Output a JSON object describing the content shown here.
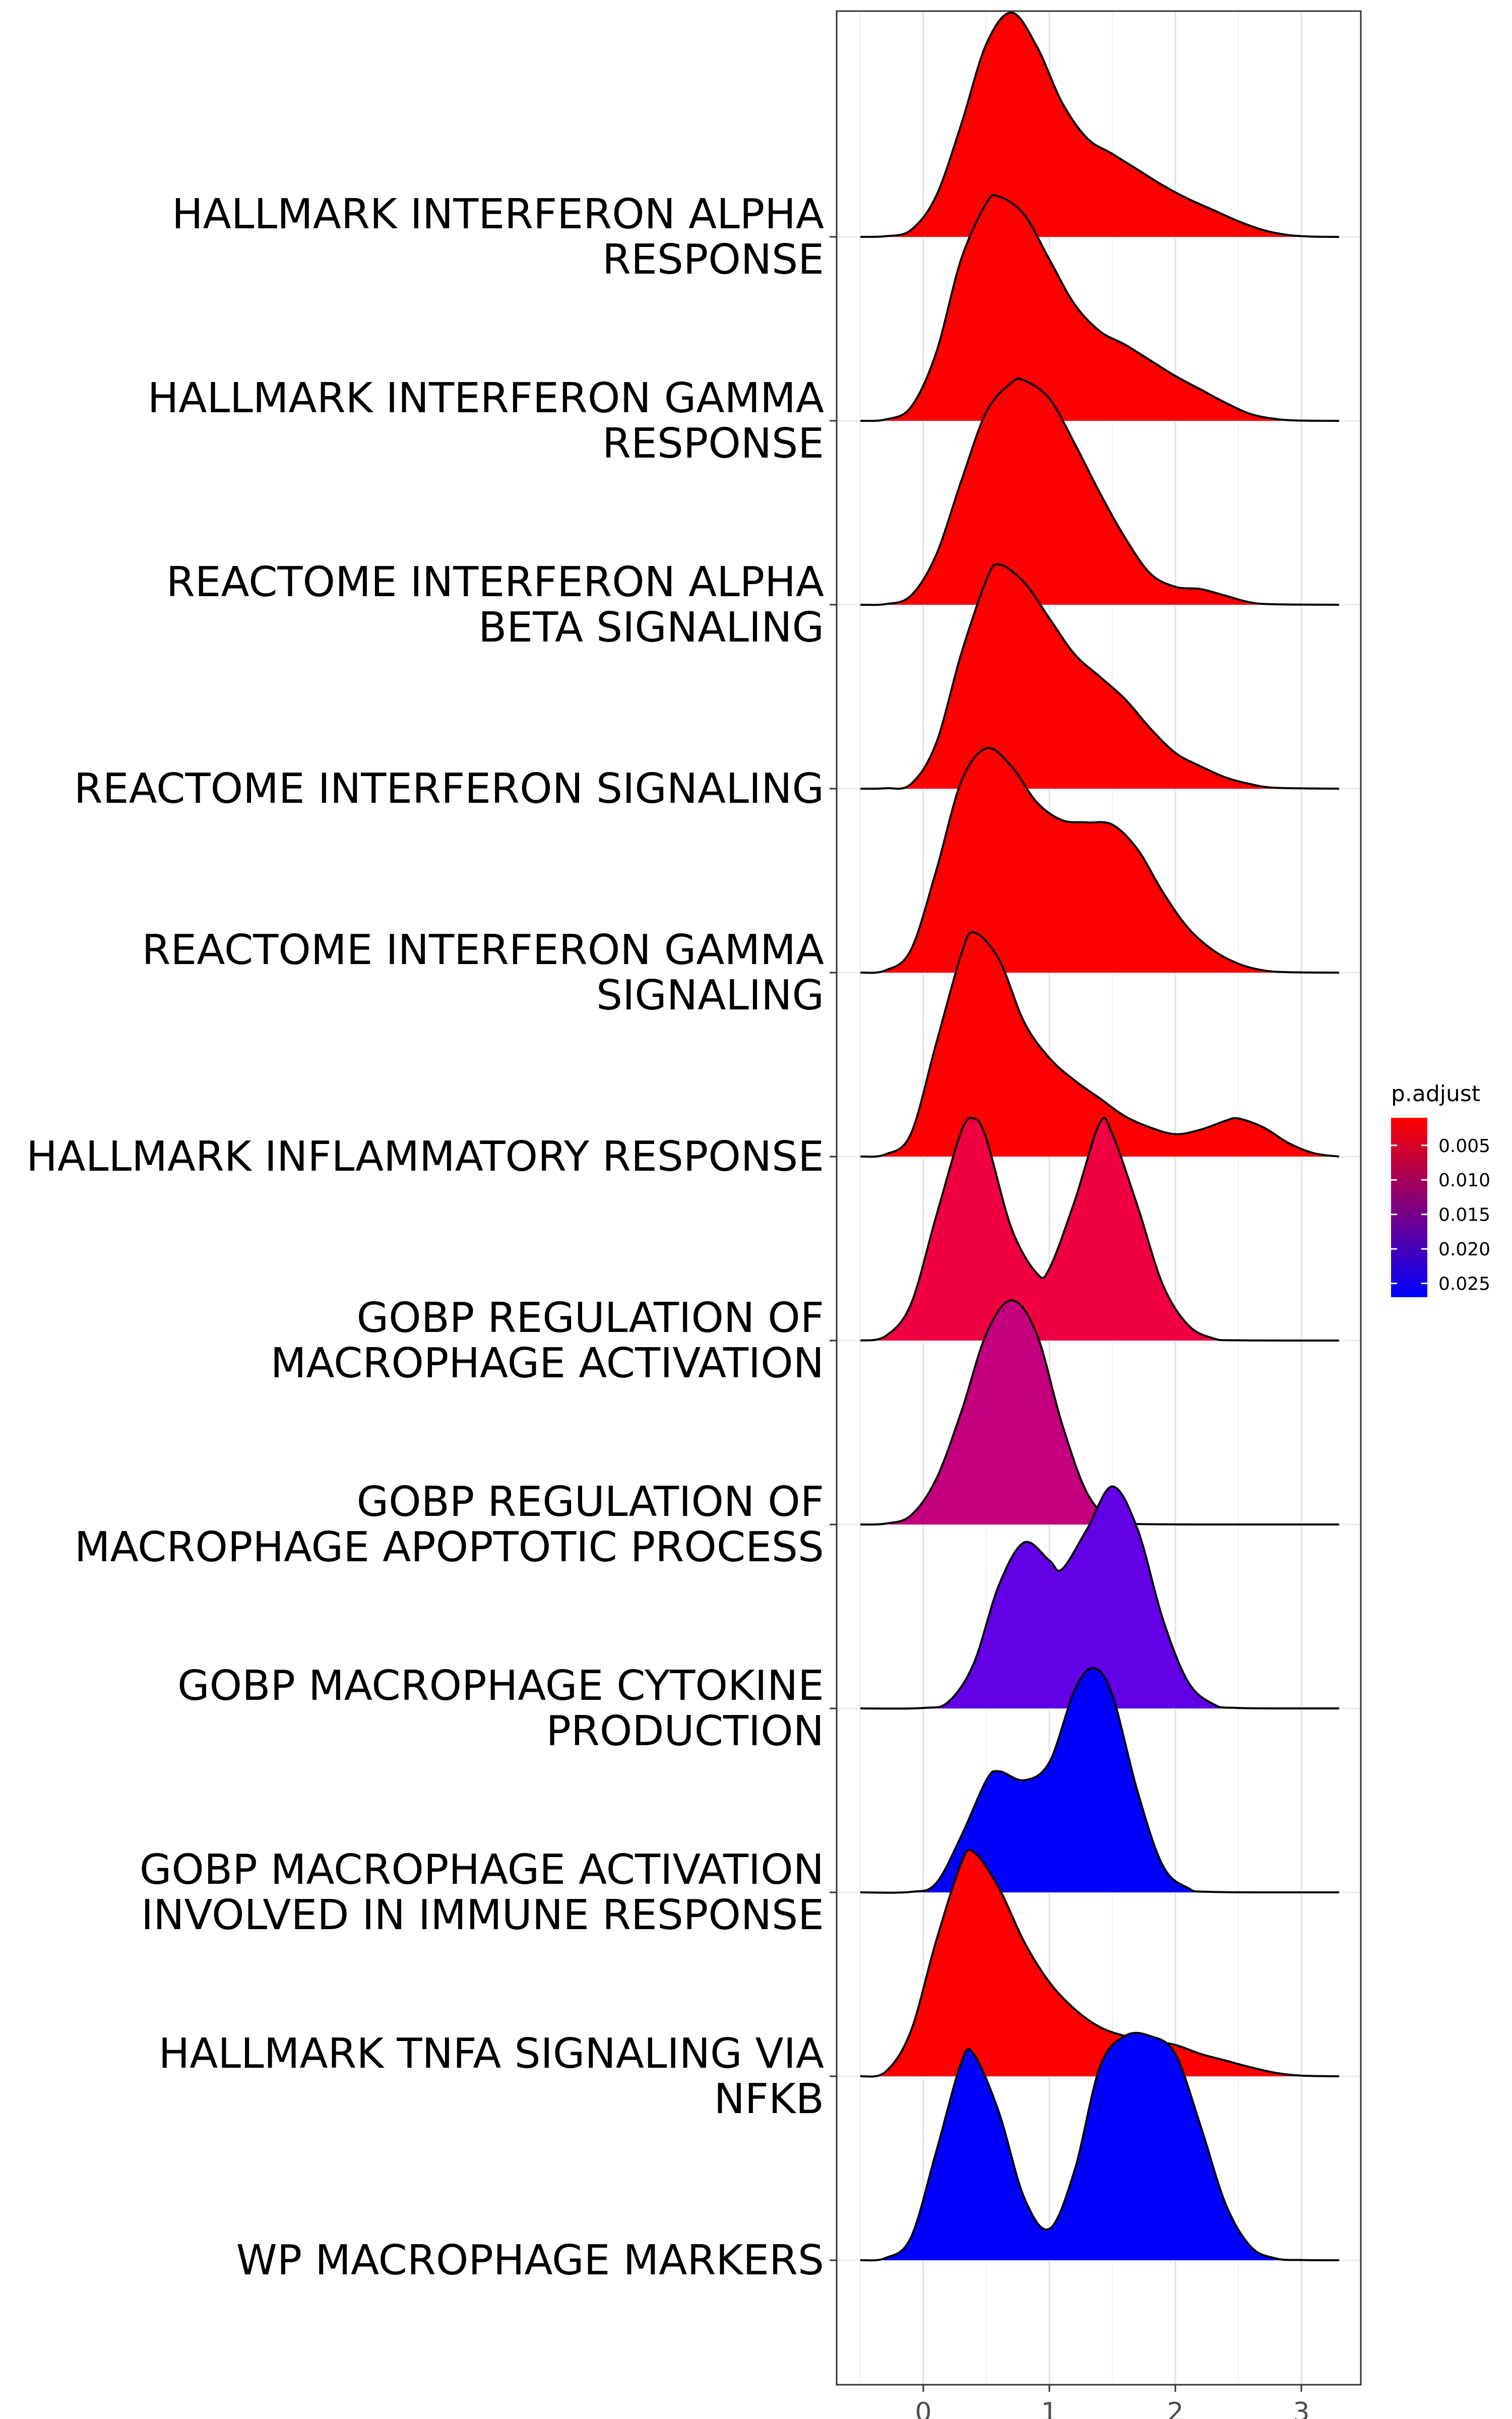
{
  "chart_data": {
    "type": "ridgeline",
    "xlim": [
      -0.5,
      3.3
    ],
    "x_ticks": [
      0,
      1,
      2,
      3
    ],
    "grid": true,
    "legend": {
      "title": "p.adjust",
      "position": "right",
      "range": [
        0.001,
        0.027
      ],
      "ticks": [
        0.005,
        0.01,
        0.015,
        0.02,
        0.025
      ],
      "tick_labels": [
        "0.005",
        "0.010",
        "0.015",
        "0.020",
        "0.025"
      ],
      "low_color": "#ff0000",
      "high_color": "#0000ff"
    },
    "categories": [
      {
        "label_lines": [
          "HALLMARK INTERFERON ALPHA",
          "RESPONSE"
        ],
        "p_adjust": 0.001,
        "color": "#ff0000",
        "density": [
          [
            -0.5,
            0
          ],
          [
            -0.3,
            0.003
          ],
          [
            -0.1,
            0.03
          ],
          [
            0.1,
            0.18
          ],
          [
            0.3,
            0.5
          ],
          [
            0.5,
            0.86
          ],
          [
            0.7,
            1.0
          ],
          [
            0.9,
            0.85
          ],
          [
            1.1,
            0.6
          ],
          [
            1.3,
            0.44
          ],
          [
            1.5,
            0.37
          ],
          [
            1.7,
            0.3
          ],
          [
            1.9,
            0.23
          ],
          [
            2.1,
            0.17
          ],
          [
            2.3,
            0.12
          ],
          [
            2.5,
            0.07
          ],
          [
            2.7,
            0.03
          ],
          [
            2.9,
            0.008
          ],
          [
            3.1,
            0.001
          ],
          [
            3.3,
            0
          ]
        ]
      },
      {
        "label_lines": [
          "HALLMARK INTERFERON GAMMA",
          "RESPONSE"
        ],
        "p_adjust": 0.001,
        "color": "#ff0000",
        "density": [
          [
            -0.5,
            0
          ],
          [
            -0.3,
            0.006
          ],
          [
            -0.1,
            0.06
          ],
          [
            0.1,
            0.3
          ],
          [
            0.3,
            0.72
          ],
          [
            0.5,
            0.97
          ],
          [
            0.6,
            1.0
          ],
          [
            0.8,
            0.92
          ],
          [
            1.0,
            0.72
          ],
          [
            1.2,
            0.52
          ],
          [
            1.4,
            0.4
          ],
          [
            1.6,
            0.34
          ],
          [
            1.8,
            0.27
          ],
          [
            2.0,
            0.2
          ],
          [
            2.2,
            0.14
          ],
          [
            2.4,
            0.08
          ],
          [
            2.6,
            0.03
          ],
          [
            2.8,
            0.008
          ],
          [
            3.0,
            0.001
          ],
          [
            3.3,
            0
          ]
        ]
      },
      {
        "label_lines": [
          "REACTOME INTERFERON ALPHA",
          "BETA SIGNALING"
        ],
        "p_adjust": 0.001,
        "color": "#ff0000",
        "density": [
          [
            -0.5,
            0
          ],
          [
            -0.3,
            0.003
          ],
          [
            -0.1,
            0.04
          ],
          [
            0.1,
            0.22
          ],
          [
            0.3,
            0.55
          ],
          [
            0.5,
            0.86
          ],
          [
            0.7,
            0.99
          ],
          [
            0.8,
            1.0
          ],
          [
            1.0,
            0.92
          ],
          [
            1.2,
            0.72
          ],
          [
            1.4,
            0.5
          ],
          [
            1.6,
            0.3
          ],
          [
            1.8,
            0.14
          ],
          [
            2.0,
            0.08
          ],
          [
            2.2,
            0.07
          ],
          [
            2.4,
            0.04
          ],
          [
            2.6,
            0.01
          ],
          [
            2.8,
            0.002
          ],
          [
            3.3,
            0
          ]
        ]
      },
      {
        "label_lines": [
          "REACTOME INTERFERON SIGNALING"
        ],
        "p_adjust": 0.001,
        "color": "#ff0000",
        "density": [
          [
            -0.5,
            0
          ],
          [
            -0.3,
            0.002
          ],
          [
            -0.1,
            0.02
          ],
          [
            0.1,
            0.2
          ],
          [
            0.3,
            0.6
          ],
          [
            0.5,
            0.93
          ],
          [
            0.6,
            1.0
          ],
          [
            0.8,
            0.92
          ],
          [
            1.0,
            0.76
          ],
          [
            1.2,
            0.6
          ],
          [
            1.4,
            0.5
          ],
          [
            1.6,
            0.4
          ],
          [
            1.8,
            0.27
          ],
          [
            2.0,
            0.16
          ],
          [
            2.2,
            0.1
          ],
          [
            2.4,
            0.05
          ],
          [
            2.6,
            0.02
          ],
          [
            2.8,
            0.004
          ],
          [
            3.3,
            0
          ]
        ]
      },
      {
        "label_lines": [
          "REACTOME INTERFERON GAMMA",
          "SIGNALING"
        ],
        "p_adjust": 0.001,
        "color": "#ff0000",
        "density": [
          [
            -0.5,
            0
          ],
          [
            -0.3,
            0.01
          ],
          [
            -0.1,
            0.1
          ],
          [
            0.1,
            0.45
          ],
          [
            0.3,
            0.85
          ],
          [
            0.5,
            1.0
          ],
          [
            0.7,
            0.92
          ],
          [
            0.9,
            0.76
          ],
          [
            1.1,
            0.68
          ],
          [
            1.3,
            0.67
          ],
          [
            1.5,
            0.66
          ],
          [
            1.7,
            0.55
          ],
          [
            1.9,
            0.36
          ],
          [
            2.1,
            0.2
          ],
          [
            2.3,
            0.1
          ],
          [
            2.5,
            0.04
          ],
          [
            2.7,
            0.01
          ],
          [
            2.9,
            0.002
          ],
          [
            3.3,
            0
          ]
        ]
      },
      {
        "label_lines": [
          "HALLMARK INFLAMMATORY RESPONSE"
        ],
        "p_adjust": 0.001,
        "color": "#ff0000",
        "density": [
          [
            -0.5,
            0
          ],
          [
            -0.3,
            0.01
          ],
          [
            -0.1,
            0.1
          ],
          [
            0.1,
            0.5
          ],
          [
            0.3,
            0.9
          ],
          [
            0.4,
            1.0
          ],
          [
            0.6,
            0.88
          ],
          [
            0.8,
            0.6
          ],
          [
            1.0,
            0.44
          ],
          [
            1.2,
            0.34
          ],
          [
            1.4,
            0.26
          ],
          [
            1.6,
            0.18
          ],
          [
            1.8,
            0.13
          ],
          [
            2.0,
            0.1
          ],
          [
            2.2,
            0.12
          ],
          [
            2.4,
            0.16
          ],
          [
            2.5,
            0.17
          ],
          [
            2.7,
            0.13
          ],
          [
            2.9,
            0.06
          ],
          [
            3.1,
            0.015
          ],
          [
            3.3,
            0
          ]
        ]
      },
      {
        "label_lines": [
          "GOBP REGULATION OF",
          "MACROPHAGE ACTIVATION"
        ],
        "p_adjust": 0.004,
        "color": "#f00040",
        "density": [
          [
            -0.5,
            0
          ],
          [
            -0.3,
            0.02
          ],
          [
            -0.1,
            0.16
          ],
          [
            0.1,
            0.55
          ],
          [
            0.3,
            0.93
          ],
          [
            0.4,
            0.99
          ],
          [
            0.5,
            0.9
          ],
          [
            0.7,
            0.5
          ],
          [
            0.9,
            0.3
          ],
          [
            1.0,
            0.32
          ],
          [
            1.2,
            0.62
          ],
          [
            1.4,
            0.97
          ],
          [
            1.5,
            0.92
          ],
          [
            1.7,
            0.6
          ],
          [
            1.9,
            0.25
          ],
          [
            2.1,
            0.07
          ],
          [
            2.3,
            0.01
          ],
          [
            2.5,
            0.001
          ],
          [
            3.3,
            0
          ]
        ]
      },
      {
        "label_lines": [
          "GOBP REGULATION OF",
          "MACROPHAGE APOPTOTIC PROCESS"
        ],
        "p_adjust": 0.011,
        "color": "#c4007e",
        "density": [
          [
            -0.5,
            0
          ],
          [
            -0.3,
            0.004
          ],
          [
            -0.1,
            0.04
          ],
          [
            0.1,
            0.2
          ],
          [
            0.3,
            0.5
          ],
          [
            0.5,
            0.85
          ],
          [
            0.7,
            1.0
          ],
          [
            0.9,
            0.85
          ],
          [
            1.1,
            0.45
          ],
          [
            1.3,
            0.14
          ],
          [
            1.5,
            0.02
          ],
          [
            1.7,
            0.002
          ],
          [
            3.3,
            0
          ]
        ]
      },
      {
        "label_lines": [
          "GOBP MACROPHAGE CYTOKINE",
          "PRODUCTION"
        ],
        "p_adjust": 0.022,
        "color": "#6200e6",
        "density": [
          [
            -0.5,
            0
          ],
          [
            0.0,
            0.002
          ],
          [
            0.2,
            0.03
          ],
          [
            0.4,
            0.2
          ],
          [
            0.6,
            0.55
          ],
          [
            0.8,
            0.74
          ],
          [
            1.0,
            0.66
          ],
          [
            1.1,
            0.62
          ],
          [
            1.3,
            0.8
          ],
          [
            1.5,
            0.99
          ],
          [
            1.7,
            0.8
          ],
          [
            1.9,
            0.4
          ],
          [
            2.1,
            0.12
          ],
          [
            2.3,
            0.02
          ],
          [
            2.5,
            0.002
          ],
          [
            3.3,
            0
          ]
        ]
      },
      {
        "label_lines": [
          "GOBP MACROPHAGE ACTIVATION",
          "INVOLVED IN IMMUNE RESPONSE"
        ],
        "p_adjust": 0.027,
        "color": "#0000ff",
        "density": [
          [
            -0.5,
            0
          ],
          [
            -0.1,
            0.002
          ],
          [
            0.1,
            0.04
          ],
          [
            0.3,
            0.25
          ],
          [
            0.5,
            0.5
          ],
          [
            0.6,
            0.54
          ],
          [
            0.8,
            0.5
          ],
          [
            1.0,
            0.58
          ],
          [
            1.2,
            0.9
          ],
          [
            1.35,
            1.0
          ],
          [
            1.5,
            0.88
          ],
          [
            1.7,
            0.45
          ],
          [
            1.9,
            0.12
          ],
          [
            2.1,
            0.02
          ],
          [
            2.3,
            0.002
          ],
          [
            3.3,
            0
          ]
        ]
      },
      {
        "label_lines": [
          "HALLMARK TNFA SIGNALING VIA",
          "NFKB"
        ],
        "p_adjust": 0.001,
        "color": "#ff0000",
        "density": [
          [
            -0.5,
            0
          ],
          [
            -0.3,
            0.02
          ],
          [
            -0.1,
            0.2
          ],
          [
            0.1,
            0.6
          ],
          [
            0.3,
            0.95
          ],
          [
            0.4,
            1.0
          ],
          [
            0.6,
            0.84
          ],
          [
            0.8,
            0.6
          ],
          [
            1.0,
            0.42
          ],
          [
            1.2,
            0.3
          ],
          [
            1.4,
            0.22
          ],
          [
            1.6,
            0.18
          ],
          [
            1.8,
            0.16
          ],
          [
            2.0,
            0.14
          ],
          [
            2.2,
            0.1
          ],
          [
            2.4,
            0.07
          ],
          [
            2.6,
            0.04
          ],
          [
            2.8,
            0.015
          ],
          [
            3.0,
            0.003
          ],
          [
            3.3,
            0
          ]
        ]
      },
      {
        "label_lines": [
          "WP MACROPHAGE MARKERS"
        ],
        "p_adjust": 0.027,
        "color": "#0000ff",
        "density": [
          [
            -0.5,
            0
          ],
          [
            -0.3,
            0.01
          ],
          [
            -0.1,
            0.1
          ],
          [
            0.1,
            0.48
          ],
          [
            0.3,
            0.88
          ],
          [
            0.4,
            0.92
          ],
          [
            0.6,
            0.66
          ],
          [
            0.8,
            0.28
          ],
          [
            1.0,
            0.14
          ],
          [
            1.2,
            0.4
          ],
          [
            1.4,
            0.86
          ],
          [
            1.6,
            1.0
          ],
          [
            1.8,
            1.0
          ],
          [
            2.0,
            0.92
          ],
          [
            2.2,
            0.6
          ],
          [
            2.4,
            0.25
          ],
          [
            2.6,
            0.06
          ],
          [
            2.8,
            0.008
          ],
          [
            3.0,
            0.001
          ],
          [
            3.3,
            0
          ]
        ]
      }
    ]
  }
}
